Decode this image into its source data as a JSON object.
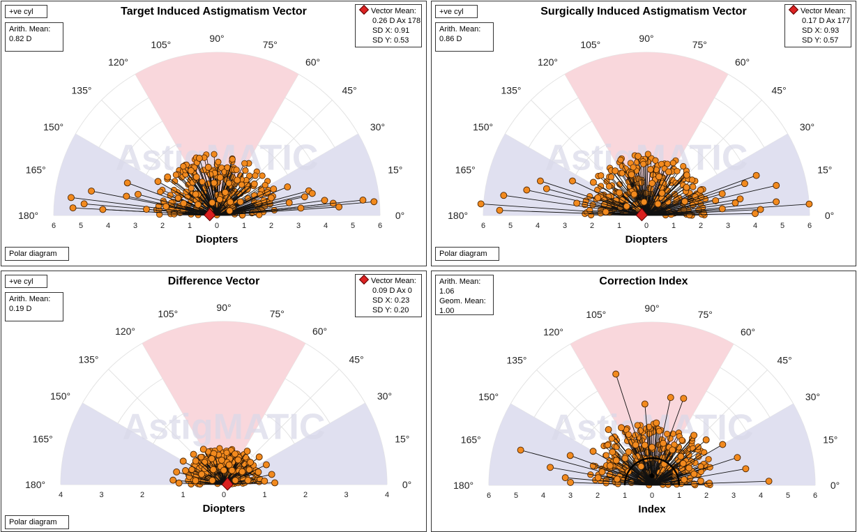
{
  "panels": [
    {
      "title": "Target Induced Astigmatism Vector",
      "cyl_label": "+ve cyl",
      "arith": [
        "Arith. Mean:",
        "0.82 D"
      ],
      "vector": {
        "label": "Vector Mean:",
        "lines": [
          "0.26 D Ax 178",
          "SD X: 0.91",
          "SD Y: 0.53"
        ]
      },
      "polar_label": "Polar diagram"
    },
    {
      "title": "Surgically Induced Astigmatism Vector",
      "cyl_label": "+ve cyl",
      "arith": [
        "Arith. Mean:",
        "0.86 D"
      ],
      "vector": {
        "label": "Vector Mean:",
        "lines": [
          "0.17 D Ax 177",
          "SD X: 0.93",
          "SD Y: 0.57"
        ]
      },
      "polar_label": "Polar diagram"
    },
    {
      "title": "Difference Vector",
      "cyl_label": "+ve cyl",
      "arith": [
        "Arith. Mean:",
        "0.19 D"
      ],
      "vector": {
        "label": "Vector Mean:",
        "lines": [
          "0.09 D Ax 0",
          "SD X: 0.23",
          "SD Y: 0.20"
        ]
      },
      "polar_label": "Polar diagram"
    },
    {
      "title": "Correction Index",
      "arith": [
        "Arith. Mean:",
        "1.06",
        "Geom. Mean:",
        "1.00"
      ]
    }
  ],
  "watermark": "AstigMATIC",
  "chart_data": [
    {
      "type": "scatter",
      "title": "Target Induced Astigmatism Vector",
      "xlabel": "Diopters",
      "angle_labels": [
        "0°",
        "15°",
        "30°",
        "45°",
        "60°",
        "75°",
        "90°",
        "105°",
        "120°",
        "135°",
        "150°",
        "165°",
        "180°"
      ],
      "radial_ticks": [
        "6",
        "5",
        "4",
        "3",
        "2",
        "1",
        "0",
        "1",
        "2",
        "3",
        "4",
        "5",
        "6"
      ],
      "rmax": 6,
      "vector_mean": {
        "magnitude": 0.26,
        "axis_deg": 178
      },
      "points_polar_r_theta": [
        [
          5.8,
          5
        ],
        [
          0.9,
          70
        ],
        [
          1.2,
          95
        ],
        [
          2.3,
          25
        ],
        [
          2.8,
          22
        ],
        [
          3.5,
          15
        ],
        [
          4.3,
          6
        ],
        [
          4.5,
          4
        ],
        [
          5.4,
          6
        ],
        [
          4.0,
          8
        ],
        [
          3.6,
          13
        ],
        [
          1.8,
          40
        ],
        [
          3.3,
          12
        ],
        [
          1.5,
          60
        ],
        [
          1.4,
          85
        ],
        [
          1.8,
          100
        ],
        [
          2.2,
          107
        ],
        [
          1.9,
          120
        ],
        [
          2.5,
          150
        ],
        [
          3.5,
          160
        ],
        [
          4.7,
          169
        ],
        [
          5.4,
          173
        ],
        [
          5.3,
          177
        ],
        [
          4.2,
          177
        ],
        [
          4.9,
          175
        ],
        [
          3.4,
          168
        ],
        [
          3.0,
          165
        ],
        [
          2.3,
          142
        ],
        [
          1.6,
          118
        ],
        [
          1.1,
          135
        ],
        [
          2.1,
          18
        ],
        [
          2.7,
          10
        ],
        [
          3.1,
          5
        ],
        [
          1.0,
          30
        ],
        [
          0.7,
          45
        ],
        [
          0.6,
          80
        ],
        [
          0.5,
          110
        ],
        [
          0.8,
          150
        ],
        [
          1.3,
          160
        ],
        [
          1.9,
          170
        ],
        [
          2.6,
          175
        ],
        [
          0.5,
          20
        ]
      ],
      "point_color": "#f28a1e"
    },
    {
      "type": "scatter",
      "title": "Surgically Induced Astigmatism Vector",
      "xlabel": "Diopters",
      "angle_labels": [
        "0°",
        "15°",
        "30°",
        "45°",
        "60°",
        "75°",
        "90°",
        "105°",
        "120°",
        "135°",
        "150°",
        "165°",
        "180°"
      ],
      "radial_ticks": [
        "6",
        "5",
        "4",
        "3",
        "2",
        "1",
        "0",
        "1",
        "2",
        "3",
        "4",
        "5",
        "6"
      ],
      "rmax": 6,
      "vector_mean": {
        "magnitude": 0.17,
        "axis_deg": 177
      },
      "points_polar_r_theta": [
        [
          6.0,
          4
        ],
        [
          4.9,
          13
        ],
        [
          4.3,
          20
        ],
        [
          3.8,
          18
        ],
        [
          2.9,
          16
        ],
        [
          4.8,
          6
        ],
        [
          4.2,
          3
        ],
        [
          4.0,
          1
        ],
        [
          3.3,
          8
        ],
        [
          2.1,
          45
        ],
        [
          1.8,
          35
        ],
        [
          1.0,
          55
        ],
        [
          1.8,
          63
        ],
        [
          1.5,
          72
        ],
        [
          1.7,
          85
        ],
        [
          2.2,
          98
        ],
        [
          1.6,
          110
        ],
        [
          2.0,
          125
        ],
        [
          2.3,
          148
        ],
        [
          3.0,
          155
        ],
        [
          4.1,
          162
        ],
        [
          4.5,
          168
        ],
        [
          5.3,
          172
        ],
        [
          6.1,
          176
        ],
        [
          5.4,
          178
        ],
        [
          3.8,
          165
        ],
        [
          2.6,
          170
        ],
        [
          1.9,
          160
        ],
        [
          1.3,
          140
        ],
        [
          0.9,
          120
        ],
        [
          2.2,
          25
        ],
        [
          2.6,
          12
        ],
        [
          1.5,
          20
        ],
        [
          0.6,
          45
        ],
        [
          0.5,
          100
        ],
        [
          0.8,
          155
        ],
        [
          1.5,
          175
        ],
        [
          2.8,
          5
        ],
        [
          3.5,
          10
        ],
        [
          1.2,
          80
        ]
      ],
      "point_color": "#f28a1e"
    },
    {
      "type": "scatter",
      "title": "Difference Vector",
      "xlabel": "Diopters",
      "angle_labels": [
        "0°",
        "15°",
        "30°",
        "45°",
        "60°",
        "75°",
        "90°",
        "105°",
        "120°",
        "135°",
        "150°",
        "165°",
        "180°"
      ],
      "radial_ticks": [
        "4",
        "3",
        "2",
        "1",
        "0",
        "1",
        "2",
        "3",
        "4"
      ],
      "rmax": 4,
      "vector_mean": {
        "magnitude": 0.09,
        "axis_deg": 0
      },
      "points_polar_r_theta": [
        [
          1.25,
          2
        ],
        [
          1.2,
          12
        ],
        [
          1.15,
          25
        ],
        [
          1.1,
          38
        ],
        [
          1.0,
          55
        ],
        [
          0.8,
          70
        ],
        [
          0.55,
          82
        ],
        [
          0.6,
          95
        ],
        [
          0.8,
          108
        ],
        [
          1.0,
          120
        ],
        [
          1.05,
          135
        ],
        [
          1.15,
          150
        ],
        [
          1.2,
          165
        ],
        [
          1.25,
          175
        ],
        [
          1.0,
          5
        ],
        [
          0.9,
          20
        ],
        [
          0.85,
          40
        ],
        [
          0.7,
          60
        ],
        [
          0.5,
          75
        ],
        [
          0.45,
          100
        ],
        [
          0.7,
          115
        ],
        [
          0.9,
          140
        ],
        [
          1.0,
          160
        ],
        [
          1.1,
          178
        ],
        [
          0.6,
          10
        ],
        [
          0.55,
          35
        ],
        [
          0.4,
          60
        ],
        [
          0.35,
          90
        ],
        [
          0.45,
          125
        ],
        [
          0.6,
          155
        ],
        [
          0.7,
          172
        ],
        [
          0.3,
          20
        ],
        [
          0.3,
          160
        ]
      ],
      "point_color": "#f28a1e"
    },
    {
      "type": "scatter",
      "title": "Correction Index",
      "xlabel": "Index",
      "angle_labels": [
        "0°",
        "15°",
        "30°",
        "45°",
        "60°",
        "75°",
        "90°",
        "105°",
        "120°",
        "135°",
        "150°",
        "165°",
        "180°"
      ],
      "radial_ticks": [
        "6",
        "5",
        "4",
        "3",
        "2",
        "1",
        "0",
        "1",
        "2",
        "3",
        "4",
        "5",
        "6"
      ],
      "rmax": 6,
      "geom_mean_radius": 1.0,
      "points_polar_r_theta": [
        [
          4.3,
          2
        ],
        [
          3.5,
          10
        ],
        [
          3.3,
          18
        ],
        [
          3.0,
          30
        ],
        [
          2.6,
          40
        ],
        [
          2.4,
          50
        ],
        [
          3.4,
          70
        ],
        [
          3.3,
          78
        ],
        [
          2.3,
          86
        ],
        [
          3.0,
          95
        ],
        [
          4.3,
          108
        ],
        [
          2.4,
          118
        ],
        [
          2.6,
          128
        ],
        [
          1.9,
          140
        ],
        [
          2.5,
          150
        ],
        [
          3.2,
          160
        ],
        [
          5.0,
          165
        ],
        [
          3.8,
          170
        ],
        [
          3.2,
          175
        ],
        [
          3.0,
          178
        ],
        [
          1.8,
          5
        ],
        [
          1.6,
          15
        ],
        [
          1.5,
          25
        ],
        [
          1.4,
          35
        ],
        [
          1.5,
          45
        ],
        [
          1.5,
          60
        ],
        [
          1.6,
          75
        ],
        [
          1.4,
          90
        ],
        [
          1.5,
          100
        ],
        [
          1.6,
          112
        ],
        [
          1.5,
          125
        ],
        [
          1.4,
          135
        ],
        [
          1.6,
          145
        ],
        [
          1.7,
          155
        ],
        [
          1.9,
          165
        ],
        [
          2.0,
          172
        ],
        [
          1.3,
          170
        ],
        [
          1.2,
          10
        ],
        [
          1.0,
          30
        ],
        [
          0.9,
          60
        ],
        [
          0.8,
          120
        ],
        [
          1.0,
          150
        ]
      ],
      "point_color": "#f28a1e"
    }
  ]
}
